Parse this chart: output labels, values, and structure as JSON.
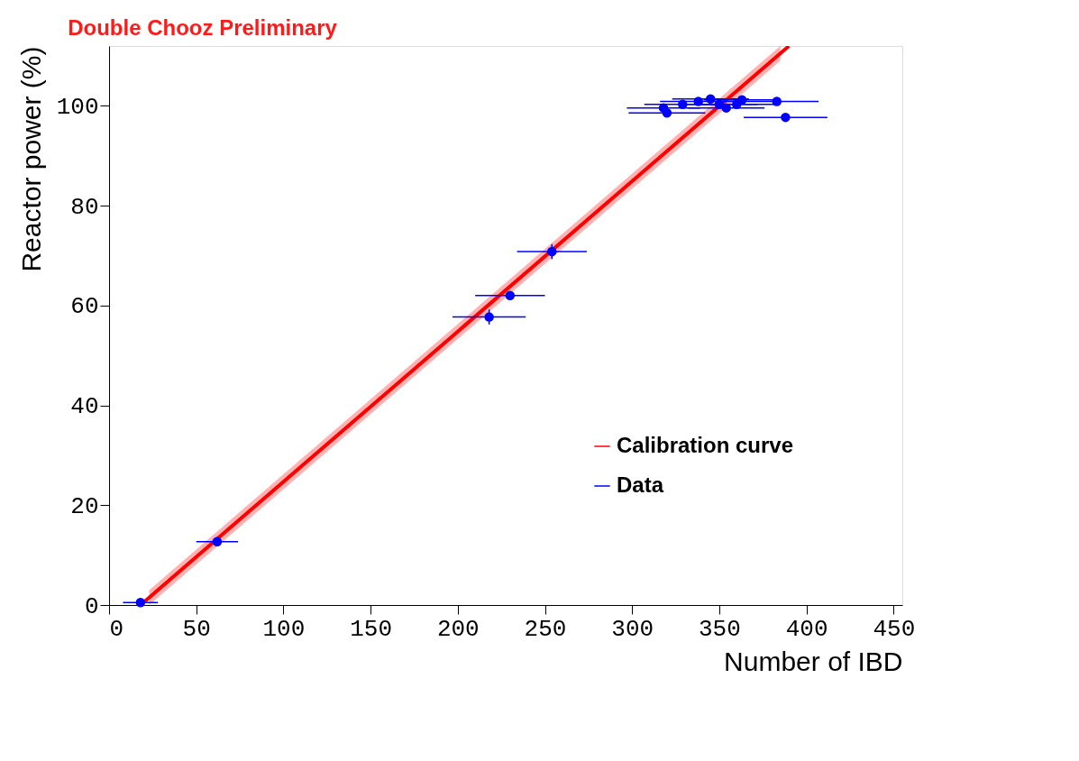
{
  "chart_data": {
    "type": "scatter",
    "title": "Double Chooz Preliminary",
    "xlabel": "Number of IBD",
    "ylabel": "Reactor power (%)",
    "xlim": [
      0,
      455
    ],
    "ylim": [
      0,
      112
    ],
    "xticks": [
      0,
      50,
      100,
      150,
      200,
      250,
      300,
      350,
      400,
      450
    ],
    "yticks": [
      0,
      20,
      40,
      60,
      80,
      100
    ],
    "grid": false,
    "legend": "bottom right",
    "series": [
      {
        "name": "Calibration curve",
        "type": "line",
        "color": "#ff0000",
        "x": [
          18,
          23,
          385,
          390
        ],
        "values": [
          0,
          1.5,
          110.5,
          112
        ],
        "lower": [
          null,
          0,
          109,
          null
        ],
        "upper": [
          null,
          3,
          112,
          null
        ]
      },
      {
        "name": "Data",
        "color": "#0000ff",
        "marker": "circle",
        "x": [
          18,
          62,
          218,
          230,
          254,
          388,
          383,
          320,
          318,
          338,
          345,
          363,
          354,
          329,
          350,
          360
        ],
        "values": [
          0.5,
          12.7,
          57.7,
          62,
          70.8,
          97.7,
          100.9,
          98.6,
          99.6,
          100.9,
          101.4,
          101.2,
          99.6,
          100.3,
          100.3,
          100.3
        ],
        "xerrors": [
          10,
          12,
          21,
          20,
          20,
          24,
          24,
          22,
          21,
          22,
          22,
          22,
          22,
          22,
          22,
          22
        ],
        "errors": [
          null,
          null,
          1.5,
          null,
          1.5,
          null,
          null,
          null,
          null,
          null,
          null,
          null,
          null,
          null,
          null,
          null
        ]
      }
    ]
  }
}
